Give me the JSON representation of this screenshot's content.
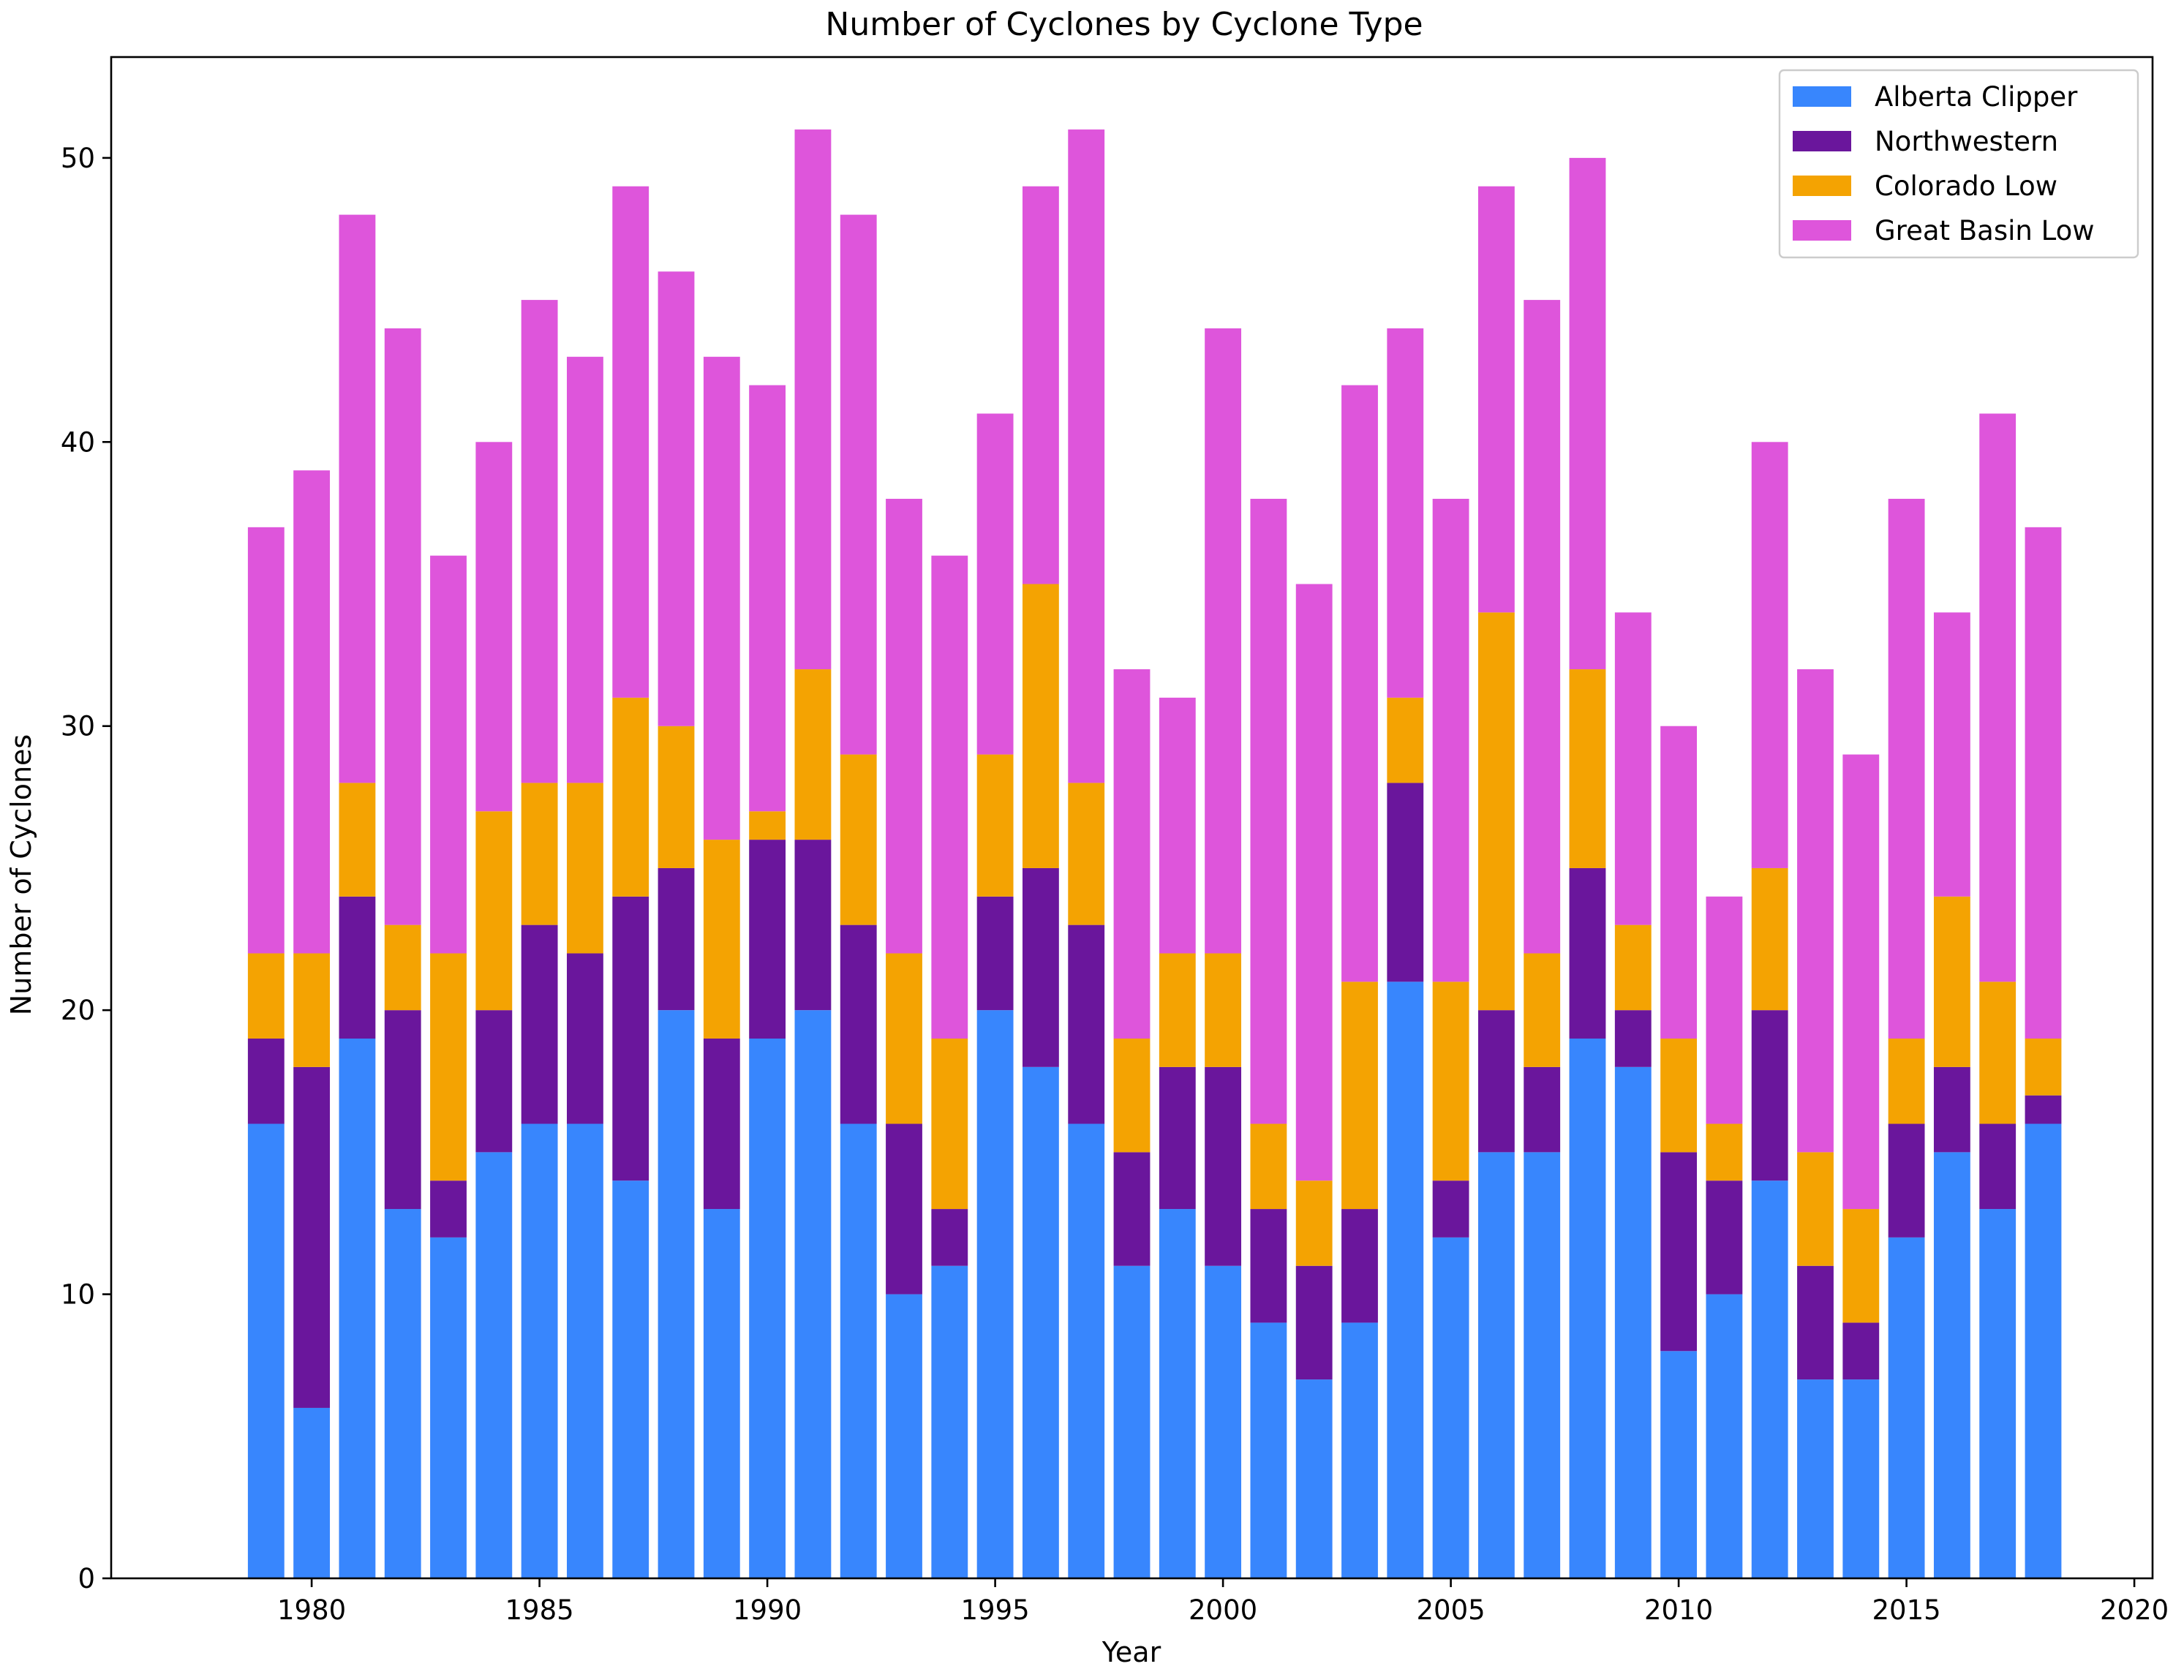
{
  "chart_data": {
    "type": "bar",
    "stacked": true,
    "title": "Number of Cyclones by Cyclone Type",
    "xlabel": "Year",
    "ylabel": "Number of Cyclones",
    "xlim": [
      1975.6,
      2020.4
    ],
    "ylim": [
      0,
      53.55
    ],
    "xticks": [
      "1980",
      "1985",
      "1990",
      "1995",
      "2000",
      "2005",
      "2010",
      "2015",
      "2020"
    ],
    "yticks": [
      "0",
      "10",
      "20",
      "30",
      "40",
      "50"
    ],
    "grid": false,
    "legend_position": "top-right",
    "x": [
      1979,
      1980,
      1981,
      1982,
      1983,
      1984,
      1985,
      1986,
      1987,
      1988,
      1989,
      1990,
      1991,
      1992,
      1993,
      1994,
      1995,
      1996,
      1997,
      1998,
      1999,
      2000,
      2001,
      2002,
      2003,
      2004,
      2005,
      2006,
      2007,
      2008,
      2009,
      2010,
      2011,
      2012,
      2013,
      2014,
      2015,
      2016,
      2017,
      2018
    ],
    "series": [
      {
        "name": "Alberta Clipper",
        "color": "#3886fd",
        "values": [
          16,
          6,
          19,
          13,
          12,
          15,
          16,
          16,
          14,
          20,
          13,
          19,
          20,
          16,
          10,
          11,
          20,
          18,
          16,
          11,
          13,
          11,
          9,
          7,
          9,
          21,
          12,
          15,
          15,
          19,
          18,
          8,
          10,
          14,
          7,
          7,
          12,
          15,
          13,
          16
        ]
      },
      {
        "name": "Northwestern",
        "color": "#6a169c",
        "values": [
          3,
          12,
          5,
          7,
          2,
          5,
          7,
          6,
          10,
          5,
          6,
          7,
          6,
          7,
          6,
          2,
          4,
          7,
          7,
          4,
          5,
          7,
          4,
          4,
          4,
          7,
          2,
          5,
          3,
          6,
          2,
          7,
          4,
          6,
          4,
          2,
          4,
          3,
          3,
          1
        ]
      },
      {
        "name": "Colorado Low",
        "color": "#f4a302",
        "values": [
          3,
          4,
          4,
          3,
          8,
          7,
          5,
          6,
          7,
          5,
          7,
          1,
          6,
          6,
          6,
          6,
          5,
          10,
          5,
          4,
          4,
          4,
          3,
          3,
          8,
          3,
          7,
          14,
          4,
          7,
          3,
          4,
          2,
          5,
          4,
          4,
          3,
          6,
          5,
          2
        ]
      },
      {
        "name": "Great Basin Low",
        "color": "#de55db",
        "values": [
          15,
          17,
          20,
          21,
          14,
          13,
          17,
          15,
          18,
          16,
          17,
          15,
          19,
          19,
          16,
          17,
          12,
          14,
          23,
          13,
          9,
          22,
          22,
          21,
          21,
          13,
          17,
          15,
          23,
          18,
          11,
          11,
          8,
          15,
          17,
          16,
          19,
          10,
          20,
          18
        ]
      }
    ]
  }
}
